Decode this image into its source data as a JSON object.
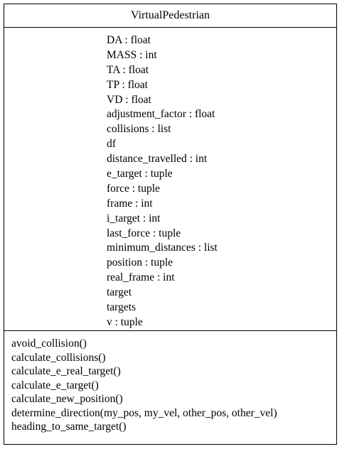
{
  "class_name": "VirtualPedestrian",
  "attributes": [
    "DA : float",
    "MASS : int",
    "TA : float",
    "TP : float",
    "VD : float",
    "adjustment_factor : float",
    "collisions : list",
    "df",
    "distance_travelled : int",
    "e_target : tuple",
    "force : tuple",
    "frame : int",
    "i_target : int",
    "last_force : tuple",
    "minimum_distances : list",
    "position : tuple",
    "real_frame : int",
    "target",
    "targets",
    "v : tuple"
  ],
  "methods": [
    "avoid_collision()",
    "calculate_collisions()",
    "calculate_e_real_target()",
    "calculate_e_target()",
    "calculate_new_position()",
    "determine_direction(my_pos, my_vel, other_pos, other_vel)",
    "heading_to_same_target()"
  ]
}
